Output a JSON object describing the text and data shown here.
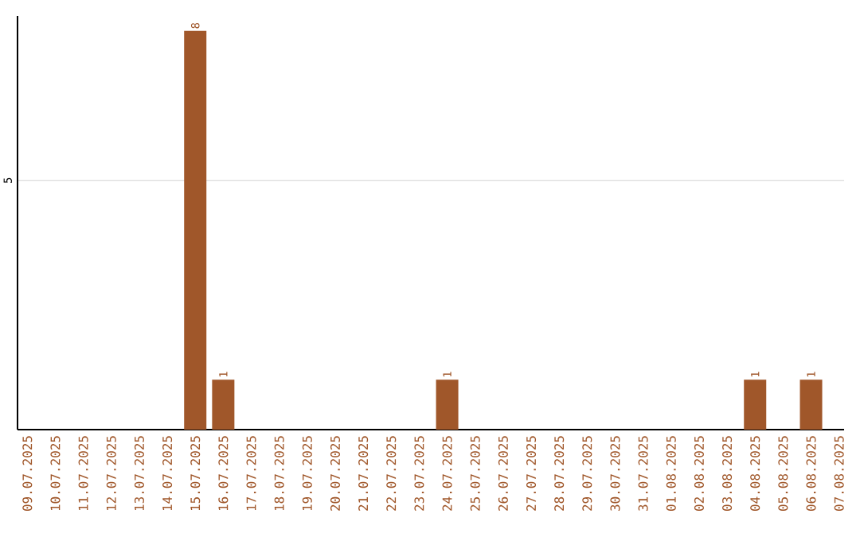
{
  "chart_data": {
    "type": "bar",
    "categories": [
      "09.07.2025",
      "10.07.2025",
      "11.07.2025",
      "12.07.2025",
      "13.07.2025",
      "14.07.2025",
      "15.07.2025",
      "16.07.2025",
      "17.07.2025",
      "18.07.2025",
      "19.07.2025",
      "20.07.2025",
      "21.07.2025",
      "22.07.2025",
      "23.07.2025",
      "24.07.2025",
      "25.07.2025",
      "26.07.2025",
      "27.07.2025",
      "28.07.2025",
      "29.07.2025",
      "30.07.2025",
      "31.07.2025",
      "01.08.2025",
      "02.08.2025",
      "03.08.2025",
      "04.08.2025",
      "05.08.2025",
      "06.08.2025",
      "07.08.2025"
    ],
    "values": [
      0,
      0,
      0,
      0,
      0,
      0,
      8,
      1,
      0,
      0,
      0,
      0,
      0,
      0,
      0,
      1,
      0,
      0,
      0,
      0,
      0,
      0,
      0,
      0,
      0,
      0,
      1,
      0,
      1,
      0
    ],
    "value_labels": [
      null,
      null,
      null,
      null,
      null,
      null,
      "8",
      "1",
      null,
      null,
      null,
      null,
      null,
      null,
      null,
      "1",
      null,
      null,
      null,
      null,
      null,
      null,
      null,
      null,
      null,
      null,
      "1",
      null,
      "1",
      null
    ],
    "color": "#a0572a",
    "ylim": [
      0,
      8.3
    ],
    "yticks": [
      5
    ],
    "grid": "y"
  }
}
